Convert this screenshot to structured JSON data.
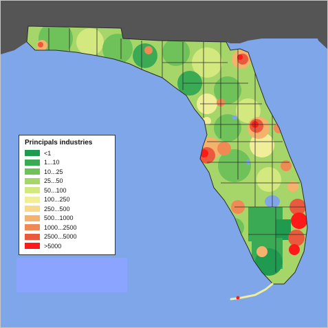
{
  "legend": {
    "title": "Principals industries",
    "items": [
      {
        "label": "<1",
        "color": "#1f9a4f"
      },
      {
        "label": "1...10",
        "color": "#3aaa55"
      },
      {
        "label": "10...25",
        "color": "#6fc15a"
      },
      {
        "label": "25...50",
        "color": "#a6d66a"
      },
      {
        "label": "50...100",
        "color": "#d3e87f"
      },
      {
        "label": "100...250",
        "color": "#f1ee9a"
      },
      {
        "label": "250...500",
        "color": "#f8d889"
      },
      {
        "label": "500...1000",
        "color": "#f5b26d"
      },
      {
        "label": "1000...2500",
        "color": "#f08a55"
      },
      {
        "label": "2500...5000",
        "color": "#e95a3c"
      },
      {
        "label": ">5000",
        "color": "#ff1a1a"
      }
    ]
  },
  "colors": {
    "water": "#7fa6e8",
    "land_outside": "#555555",
    "county_border": "#2a2a2a",
    "lake": "#7fa6e8"
  }
}
